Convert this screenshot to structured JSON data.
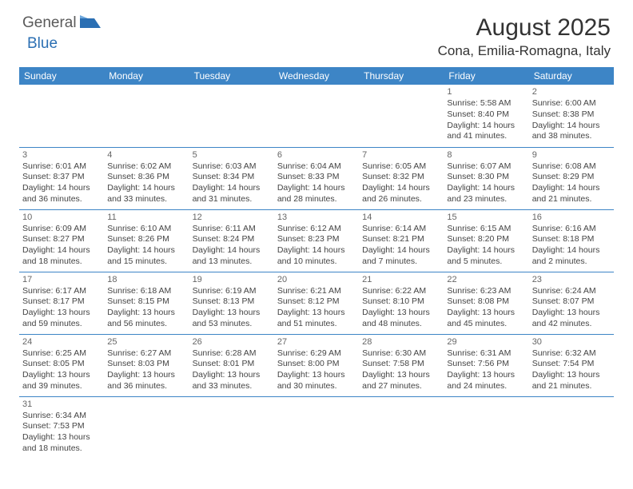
{
  "brand": {
    "part1": "General",
    "part2": "Blue"
  },
  "title": "August 2025",
  "location": "Cona, Emilia-Romagna, Italy",
  "colors": {
    "header_bg": "#3d85c6",
    "header_text": "#ffffff",
    "border": "#3d85c6",
    "brand_grey": "#5a5a5a",
    "brand_blue": "#2b6fb3"
  },
  "weekdays": [
    "Sunday",
    "Monday",
    "Tuesday",
    "Wednesday",
    "Thursday",
    "Friday",
    "Saturday"
  ],
  "weeks": [
    [
      null,
      null,
      null,
      null,
      null,
      {
        "d": "1",
        "sr": "Sunrise: 5:58 AM",
        "ss": "Sunset: 8:40 PM",
        "dl1": "Daylight: 14 hours",
        "dl2": "and 41 minutes."
      },
      {
        "d": "2",
        "sr": "Sunrise: 6:00 AM",
        "ss": "Sunset: 8:38 PM",
        "dl1": "Daylight: 14 hours",
        "dl2": "and 38 minutes."
      }
    ],
    [
      {
        "d": "3",
        "sr": "Sunrise: 6:01 AM",
        "ss": "Sunset: 8:37 PM",
        "dl1": "Daylight: 14 hours",
        "dl2": "and 36 minutes."
      },
      {
        "d": "4",
        "sr": "Sunrise: 6:02 AM",
        "ss": "Sunset: 8:36 PM",
        "dl1": "Daylight: 14 hours",
        "dl2": "and 33 minutes."
      },
      {
        "d": "5",
        "sr": "Sunrise: 6:03 AM",
        "ss": "Sunset: 8:34 PM",
        "dl1": "Daylight: 14 hours",
        "dl2": "and 31 minutes."
      },
      {
        "d": "6",
        "sr": "Sunrise: 6:04 AM",
        "ss": "Sunset: 8:33 PM",
        "dl1": "Daylight: 14 hours",
        "dl2": "and 28 minutes."
      },
      {
        "d": "7",
        "sr": "Sunrise: 6:05 AM",
        "ss": "Sunset: 8:32 PM",
        "dl1": "Daylight: 14 hours",
        "dl2": "and 26 minutes."
      },
      {
        "d": "8",
        "sr": "Sunrise: 6:07 AM",
        "ss": "Sunset: 8:30 PM",
        "dl1": "Daylight: 14 hours",
        "dl2": "and 23 minutes."
      },
      {
        "d": "9",
        "sr": "Sunrise: 6:08 AM",
        "ss": "Sunset: 8:29 PM",
        "dl1": "Daylight: 14 hours",
        "dl2": "and 21 minutes."
      }
    ],
    [
      {
        "d": "10",
        "sr": "Sunrise: 6:09 AM",
        "ss": "Sunset: 8:27 PM",
        "dl1": "Daylight: 14 hours",
        "dl2": "and 18 minutes."
      },
      {
        "d": "11",
        "sr": "Sunrise: 6:10 AM",
        "ss": "Sunset: 8:26 PM",
        "dl1": "Daylight: 14 hours",
        "dl2": "and 15 minutes."
      },
      {
        "d": "12",
        "sr": "Sunrise: 6:11 AM",
        "ss": "Sunset: 8:24 PM",
        "dl1": "Daylight: 14 hours",
        "dl2": "and 13 minutes."
      },
      {
        "d": "13",
        "sr": "Sunrise: 6:12 AM",
        "ss": "Sunset: 8:23 PM",
        "dl1": "Daylight: 14 hours",
        "dl2": "and 10 minutes."
      },
      {
        "d": "14",
        "sr": "Sunrise: 6:14 AM",
        "ss": "Sunset: 8:21 PM",
        "dl1": "Daylight: 14 hours",
        "dl2": "and 7 minutes."
      },
      {
        "d": "15",
        "sr": "Sunrise: 6:15 AM",
        "ss": "Sunset: 8:20 PM",
        "dl1": "Daylight: 14 hours",
        "dl2": "and 5 minutes."
      },
      {
        "d": "16",
        "sr": "Sunrise: 6:16 AM",
        "ss": "Sunset: 8:18 PM",
        "dl1": "Daylight: 14 hours",
        "dl2": "and 2 minutes."
      }
    ],
    [
      {
        "d": "17",
        "sr": "Sunrise: 6:17 AM",
        "ss": "Sunset: 8:17 PM",
        "dl1": "Daylight: 13 hours",
        "dl2": "and 59 minutes."
      },
      {
        "d": "18",
        "sr": "Sunrise: 6:18 AM",
        "ss": "Sunset: 8:15 PM",
        "dl1": "Daylight: 13 hours",
        "dl2": "and 56 minutes."
      },
      {
        "d": "19",
        "sr": "Sunrise: 6:19 AM",
        "ss": "Sunset: 8:13 PM",
        "dl1": "Daylight: 13 hours",
        "dl2": "and 53 minutes."
      },
      {
        "d": "20",
        "sr": "Sunrise: 6:21 AM",
        "ss": "Sunset: 8:12 PM",
        "dl1": "Daylight: 13 hours",
        "dl2": "and 51 minutes."
      },
      {
        "d": "21",
        "sr": "Sunrise: 6:22 AM",
        "ss": "Sunset: 8:10 PM",
        "dl1": "Daylight: 13 hours",
        "dl2": "and 48 minutes."
      },
      {
        "d": "22",
        "sr": "Sunrise: 6:23 AM",
        "ss": "Sunset: 8:08 PM",
        "dl1": "Daylight: 13 hours",
        "dl2": "and 45 minutes."
      },
      {
        "d": "23",
        "sr": "Sunrise: 6:24 AM",
        "ss": "Sunset: 8:07 PM",
        "dl1": "Daylight: 13 hours",
        "dl2": "and 42 minutes."
      }
    ],
    [
      {
        "d": "24",
        "sr": "Sunrise: 6:25 AM",
        "ss": "Sunset: 8:05 PM",
        "dl1": "Daylight: 13 hours",
        "dl2": "and 39 minutes."
      },
      {
        "d": "25",
        "sr": "Sunrise: 6:27 AM",
        "ss": "Sunset: 8:03 PM",
        "dl1": "Daylight: 13 hours",
        "dl2": "and 36 minutes."
      },
      {
        "d": "26",
        "sr": "Sunrise: 6:28 AM",
        "ss": "Sunset: 8:01 PM",
        "dl1": "Daylight: 13 hours",
        "dl2": "and 33 minutes."
      },
      {
        "d": "27",
        "sr": "Sunrise: 6:29 AM",
        "ss": "Sunset: 8:00 PM",
        "dl1": "Daylight: 13 hours",
        "dl2": "and 30 minutes."
      },
      {
        "d": "28",
        "sr": "Sunrise: 6:30 AM",
        "ss": "Sunset: 7:58 PM",
        "dl1": "Daylight: 13 hours",
        "dl2": "and 27 minutes."
      },
      {
        "d": "29",
        "sr": "Sunrise: 6:31 AM",
        "ss": "Sunset: 7:56 PM",
        "dl1": "Daylight: 13 hours",
        "dl2": "and 24 minutes."
      },
      {
        "d": "30",
        "sr": "Sunrise: 6:32 AM",
        "ss": "Sunset: 7:54 PM",
        "dl1": "Daylight: 13 hours",
        "dl2": "and 21 minutes."
      }
    ],
    [
      {
        "d": "31",
        "sr": "Sunrise: 6:34 AM",
        "ss": "Sunset: 7:53 PM",
        "dl1": "Daylight: 13 hours",
        "dl2": "and 18 minutes."
      },
      null,
      null,
      null,
      null,
      null,
      null
    ]
  ]
}
